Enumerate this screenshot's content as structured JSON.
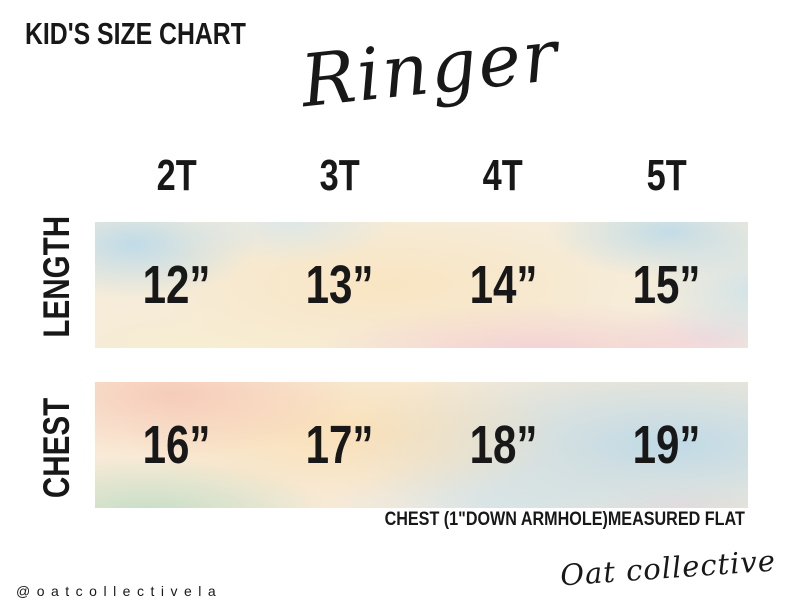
{
  "page": {
    "title": "KID'S SIZE CHART",
    "product_name": "Ringer",
    "footnote": "CHEST (1\"DOWN ARMHOLE)MEASURED FLAT",
    "social_handle": "@oatcollectivela",
    "brand_signature": "Oat collective"
  },
  "chart_data": {
    "type": "table",
    "title": "KID'S SIZE CHART",
    "subtitle": "Ringer",
    "columns": [
      "2T",
      "3T",
      "4T",
      "5T"
    ],
    "rows": [
      {
        "label": "LENGTH",
        "values": [
          "12”",
          "13”",
          "14”",
          "15”"
        ]
      },
      {
        "label": "CHEST",
        "values": [
          "16”",
          "17”",
          "18”",
          "19”"
        ]
      }
    ],
    "note": "CHEST (1\"DOWN ARMHOLE)MEASURED FLAT",
    "layout_hints": {
      "row_band_style": "pastel watercolor wash",
      "header_position": "top",
      "row_labels_rotated": true
    }
  },
  "colors": {
    "text": "#181818",
    "background": "#ffffff",
    "watercolor_blue": "#d8eaf2",
    "watercolor_cream": "#f7ead4",
    "watercolor_peach": "#f8dfc2",
    "watercolor_pink": "#f6dde2",
    "watercolor_salmon": "#f8d9cc",
    "watercolor_mint": "#d8e6d9"
  }
}
